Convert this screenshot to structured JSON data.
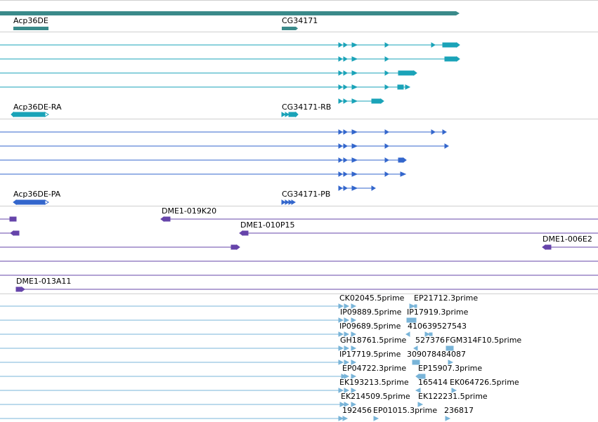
{
  "tracks": {
    "gene": {
      "name": "gene-track",
      "color": "#3a8a8a",
      "labels": [
        "Acp36DE",
        "CG34171"
      ]
    },
    "transcripts": {
      "name": "mrna-track",
      "color": "#1aa3b8",
      "labels": [
        "Acp36DE-RA",
        "CG34171-RB"
      ]
    },
    "polypeptides": {
      "name": "protein-track",
      "color": "#3366cc",
      "labels": [
        "Acp36DE-PA",
        "CG34171-PB"
      ]
    },
    "bacs": {
      "name": "bac-track",
      "color": "#6644aa",
      "labels": [
        "DME1-019K20",
        "DME1-010P15",
        "DME1-006E2",
        "DME1-013A11"
      ]
    },
    "ests": {
      "name": "est-track",
      "color": "#79b4d8",
      "labels": [
        "CK02045.5prime",
        "EP21712.3prime",
        "IP09889.5prime",
        "IP17919.3prime",
        "IP09689.5prime",
        "410639527543",
        "GH18761.5prime",
        "527376",
        "FGM314F10.5prime",
        "IP17719.5prime",
        "309078484087",
        "EP04722.3prime",
        "EP15907.3prime",
        "EK193213.5prime",
        "165414",
        "EK064726.5prime",
        "EK214509.5prime",
        "EK122231.5prime",
        "192456",
        "EP01015.3prime",
        "236817"
      ]
    }
  }
}
